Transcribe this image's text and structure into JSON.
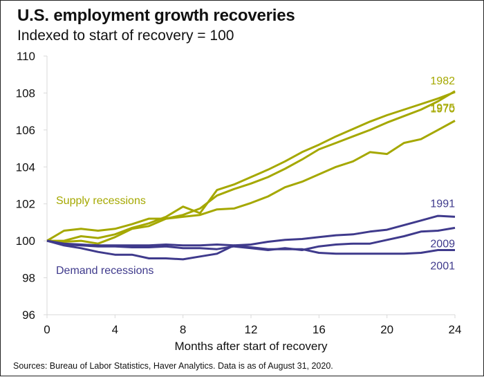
{
  "chart_data": {
    "type": "line",
    "title": "U.S. employment growth recoveries",
    "subtitle": "Indexed to start of recovery = 100",
    "xlabel": "Months after start of recovery",
    "ylabel": "",
    "xlim": [
      0,
      24
    ],
    "ylim": [
      96,
      110
    ],
    "xticks": [
      0,
      4,
      8,
      12,
      16,
      20,
      24
    ],
    "yticks": [
      96,
      98,
      100,
      102,
      104,
      106,
      108,
      110
    ],
    "grid": false,
    "x": [
      0,
      1,
      2,
      3,
      4,
      5,
      6,
      7,
      8,
      9,
      10,
      11,
      12,
      13,
      14,
      15,
      16,
      17,
      18,
      19,
      20,
      21,
      22,
      23,
      24
    ],
    "series": [
      {
        "name": "1982",
        "group": "supply",
        "color": "#a5a800",
        "values": [
          100,
          99.95,
          100.0,
          99.85,
          100.2,
          100.65,
          100.8,
          101.2,
          101.4,
          101.75,
          102.45,
          102.8,
          103.1,
          103.45,
          103.9,
          104.4,
          104.95,
          105.3,
          105.65,
          106.0,
          106.4,
          106.75,
          107.1,
          107.55,
          108.1
        ]
      },
      {
        "name": "1970",
        "group": "supply",
        "color": "#a5a800",
        "values": [
          100,
          100.55,
          100.65,
          100.55,
          100.65,
          100.9,
          101.2,
          101.2,
          101.3,
          101.4,
          101.7,
          101.75,
          102.05,
          102.4,
          102.9,
          103.2,
          103.6,
          104.0,
          104.3,
          104.8,
          104.7,
          105.3,
          105.5,
          106.0,
          106.5
        ]
      },
      {
        "name": "1975",
        "group": "supply",
        "color": "#a5a800",
        "values": [
          100,
          100.0,
          100.25,
          100.15,
          100.35,
          100.7,
          100.95,
          101.3,
          101.85,
          101.5,
          102.75,
          103.05,
          103.45,
          103.85,
          104.3,
          104.8,
          105.2,
          105.65,
          106.05,
          106.45,
          106.8,
          107.1,
          107.4,
          107.7,
          108.05
        ]
      },
      {
        "name": "1991",
        "group": "demand",
        "color": "#3f3a8c",
        "values": [
          100,
          99.85,
          99.8,
          99.75,
          99.75,
          99.75,
          99.75,
          99.8,
          99.75,
          99.75,
          99.8,
          99.75,
          99.8,
          99.95,
          100.05,
          100.1,
          100.2,
          100.3,
          100.35,
          100.5,
          100.6,
          100.85,
          101.1,
          101.35,
          101.3
        ]
      },
      {
        "name": "2009",
        "group": "demand",
        "color": "#3f3a8c",
        "values": [
          100,
          99.8,
          99.75,
          99.7,
          99.7,
          99.65,
          99.65,
          99.7,
          99.6,
          99.6,
          99.55,
          99.7,
          99.6,
          99.5,
          99.6,
          99.5,
          99.7,
          99.8,
          99.85,
          99.85,
          100.05,
          100.25,
          100.5,
          100.55,
          100.7
        ]
      },
      {
        "name": "2001",
        "group": "demand",
        "color": "#3f3a8c",
        "values": [
          100,
          99.75,
          99.6,
          99.4,
          99.25,
          99.25,
          99.05,
          99.05,
          99.0,
          99.15,
          99.3,
          99.75,
          99.65,
          99.55,
          99.55,
          99.55,
          99.35,
          99.3,
          99.3,
          99.3,
          99.3,
          99.3,
          99.35,
          99.5,
          99.5
        ]
      }
    ],
    "annotations": [
      {
        "text": "Supply recessions",
        "color": "#a5a800"
      },
      {
        "text": "Demand recessions",
        "color": "#3f3a8c"
      }
    ],
    "source": "Sources: Bureau of Labor Statistics, Haver Analytics. Data is as of August 31, 2020."
  }
}
